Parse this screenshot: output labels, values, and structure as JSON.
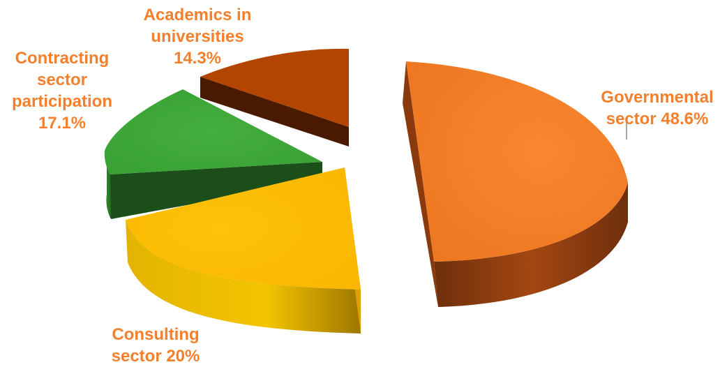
{
  "chart_data": {
    "type": "pie",
    "style": "3d-exploded",
    "label_color": "#F47F2C",
    "leader_line_color": "#A6A6A6",
    "slices": [
      {
        "id": "gov",
        "value": 48.6,
        "color": "#F47F2C",
        "side": "#C45A16",
        "dark": "#7A3410",
        "label_lines": [
          "Governmental",
          "sector 48.6%"
        ]
      },
      {
        "id": "cons",
        "value": 20.0,
        "color": "#FFC000",
        "side": "#D9A000",
        "dark": "#8E6A00",
        "label_lines": [
          "Consulting",
          "sector 20%"
        ]
      },
      {
        "id": "cont",
        "value": 17.1,
        "color": "#3FA93A",
        "side": "#2A7A24",
        "dark": "#1C4E19",
        "label_lines": [
          "Contracting",
          "sector",
          "participation",
          "17.1%"
        ]
      },
      {
        "id": "acad",
        "value": 14.3,
        "color": "#B54600",
        "side": "#7E3000",
        "dark": "#4A1A00",
        "label_lines": [
          "Academics in",
          "universities",
          "14.3%"
        ]
      }
    ]
  }
}
